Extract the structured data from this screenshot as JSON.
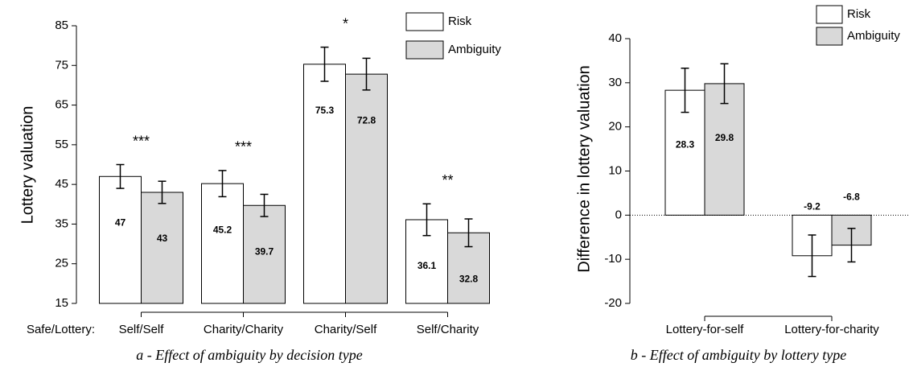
{
  "chart_data": [
    {
      "type": "bar",
      "title": "a - Effect of ambiguity by decision type",
      "x_label": "Safe/Lottery:",
      "y_label": "Lottery valuation",
      "categories": [
        "Self/Self",
        "Charity/Charity",
        "Charity/Self",
        "Self/Charity"
      ],
      "series": [
        {
          "name": "Risk",
          "color": "#ffffff",
          "values": [
            47,
            45.2,
            75.3,
            36.1
          ],
          "errors": [
            3,
            3.3,
            4.3,
            4
          ]
        },
        {
          "name": "Ambiguity",
          "color": "#d9d9d9",
          "values": [
            43,
            39.7,
            72.8,
            32.8
          ],
          "errors": [
            2.8,
            2.8,
            4,
            3.5
          ]
        }
      ],
      "annotations": [
        "***",
        "***",
        "*",
        "**"
      ],
      "ylim": [
        15,
        85
      ],
      "yticks": [
        15,
        25,
        35,
        45,
        55,
        65,
        75,
        85
      ],
      "legend": "upper right"
    },
    {
      "type": "bar",
      "title": "b - Effect of ambiguity by lottery type",
      "y_label": "Difference in lottery valuation",
      "categories": [
        "Lottery-for-self",
        "Lottery-for-charity"
      ],
      "series": [
        {
          "name": "Risk",
          "color": "#ffffff",
          "values": [
            28.3,
            -9.2
          ],
          "errors": [
            5,
            4.7
          ]
        },
        {
          "name": "Ambiguity",
          "color": "#d9d9d9",
          "values": [
            29.8,
            -6.8
          ],
          "errors": [
            4.5,
            3.8
          ]
        }
      ],
      "reference_line": 0,
      "ylim": [
        -20,
        40
      ],
      "yticks": [
        -20,
        -10,
        0,
        10,
        20,
        30,
        40
      ],
      "legend": "upper right"
    }
  ]
}
